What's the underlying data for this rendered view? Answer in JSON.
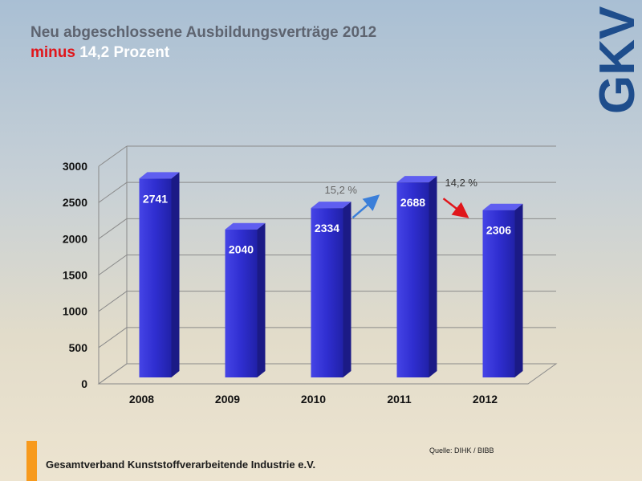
{
  "title": "Neu abgeschlossene Ausbildungsverträge 2012",
  "subtitle_red": "minus",
  "subtitle_white": "14,2 Prozent",
  "logo_text": "GKV",
  "footer": "Gesamtverband Kunststoffverarbeitende Industrie e.V.",
  "source": "Quelle: DIHK / BIBB",
  "colors": {
    "bar": "#2f2ed0",
    "arrow_up": "#3b7fd9",
    "arrow_down": "#e0161b",
    "accent_orange": "#f79a1d",
    "logo": "#1e4d8c"
  },
  "chart_data": {
    "type": "bar",
    "categories": [
      "2008",
      "2009",
      "2010",
      "2011",
      "2012"
    ],
    "values": [
      2741,
      2040,
      2334,
      2688,
      2306
    ],
    "data_labels": [
      "2741",
      "2040",
      "2334",
      "2688",
      "2306"
    ],
    "ylim": [
      0,
      3000
    ],
    "yticks": [
      0,
      500,
      1000,
      1500,
      2000,
      2500,
      3000
    ],
    "ytick_labels": [
      "0",
      "500",
      "1000",
      "1500",
      "2000",
      "2500",
      "3000"
    ],
    "grid": true,
    "three_d": true,
    "annotations": [
      {
        "text": "15,2 %",
        "direction": "up",
        "between": [
          "2010",
          "2011"
        ]
      },
      {
        "text": "14,2 %",
        "direction": "down",
        "between": [
          "2011",
          "2012"
        ]
      }
    ]
  }
}
